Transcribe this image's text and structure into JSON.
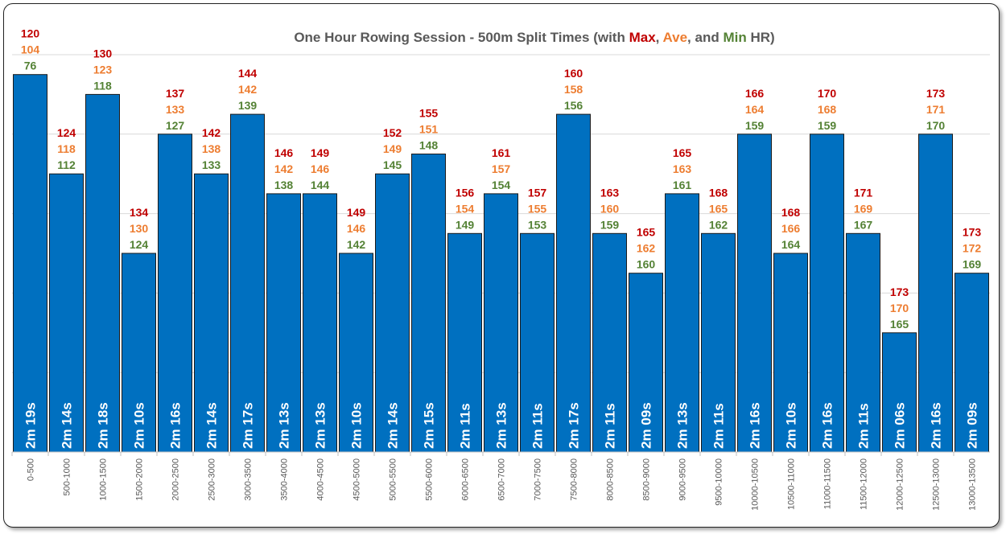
{
  "colors": {
    "bar": "#0070c0",
    "bar_border": "#1a1a1a",
    "max": "#c00000",
    "ave": "#ed7d31",
    "min": "#548235",
    "title": "#595959",
    "grid": "#d9d9d9"
  },
  "chart_data": {
    "type": "bar",
    "title_parts": [
      {
        "text": "One Hour Rowing Session - 500m Split Times (with ",
        "role": "title"
      },
      {
        "text": "Max",
        "role": "max"
      },
      {
        "text": ", ",
        "role": "title"
      },
      {
        "text": "Ave",
        "role": "ave"
      },
      {
        "text": ", and ",
        "role": "title"
      },
      {
        "text": "Min",
        "role": "min"
      },
      {
        "text": " HR)",
        "role": "title"
      }
    ],
    "ylim": [
      120,
      140
    ],
    "grid": true,
    "categories": [
      "0-500",
      "500-1000",
      "1000-1500",
      "1500-2000",
      "2000-2500",
      "2500-3000",
      "3000-3500",
      "3500-4000",
      "4000-4500",
      "4500-5000",
      "5000-5500",
      "5500-6000",
      "6000-6500",
      "6500-7000",
      "7000-7500",
      "7500-8000",
      "8000-8500",
      "8500-9000",
      "9000-9500",
      "9500-10000",
      "10000-10500",
      "10500-11000",
      "11000-11500",
      "11500-12000",
      "12000-12500",
      "12500-13000",
      "13000-13500"
    ],
    "values": [
      139,
      134,
      138,
      130,
      136,
      134,
      137,
      133,
      133,
      130,
      134,
      135,
      131,
      133,
      131,
      137,
      131,
      129,
      133,
      131,
      136,
      130,
      136,
      131,
      126,
      136,
      129
    ],
    "value_labels": [
      "2m 19s",
      "2m 14s",
      "2m 18s",
      "2m 10s",
      "2m 16s",
      "2m 14s",
      "2m 17s",
      "2m 13s",
      "2m 13s",
      "2m 10s",
      "2m 14s",
      "2m 15s",
      "2m 11s",
      "2m 13s",
      "2m 11s",
      "2m 17s",
      "2m 11s",
      "2m 09s",
      "2m 13s",
      "2m 11s",
      "2m 16s",
      "2m 10s",
      "2m 16s",
      "2m 11s",
      "2m 06s",
      "2m 16s",
      "2m 09s"
    ],
    "hr_max": [
      120,
      124,
      130,
      134,
      137,
      142,
      144,
      146,
      149,
      149,
      152,
      155,
      156,
      161,
      157,
      160,
      163,
      165,
      165,
      168,
      166,
      168,
      170,
      171,
      173,
      173,
      173
    ],
    "hr_ave": [
      104,
      118,
      123,
      130,
      133,
      138,
      142,
      142,
      146,
      146,
      149,
      151,
      154,
      157,
      155,
      158,
      160,
      162,
      163,
      165,
      164,
      166,
      168,
      169,
      170,
      171,
      172
    ],
    "hr_min": [
      76,
      112,
      118,
      124,
      127,
      133,
      139,
      138,
      144,
      142,
      145,
      148,
      149,
      154,
      153,
      156,
      159,
      160,
      161,
      162,
      159,
      164,
      159,
      167,
      165,
      170,
      169
    ]
  }
}
